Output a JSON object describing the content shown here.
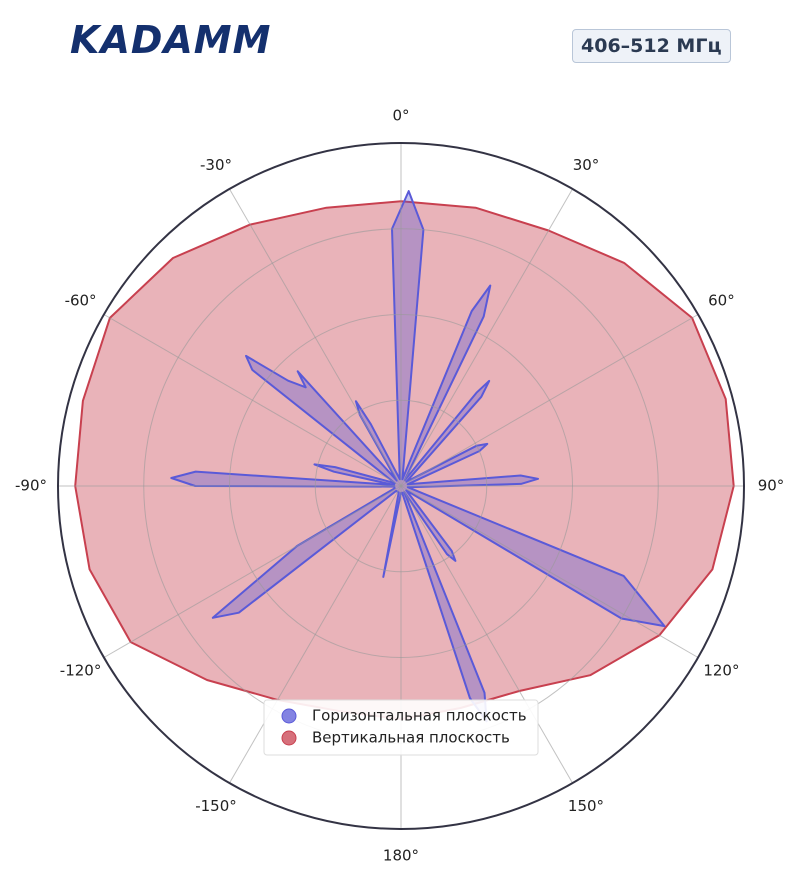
{
  "logo": "KADAMM",
  "badge": "406–512 МГц",
  "chart_data": {
    "type": "polar",
    "direction": "clockwise",
    "zero": "top",
    "rlim": [
      0,
      1
    ],
    "rgrid": [
      0.25,
      0.5,
      0.75
    ],
    "thetaticks": [
      {
        "value": 0,
        "label": "0°"
      },
      {
        "value": 30,
        "label": "30°"
      },
      {
        "value": 60,
        "label": "60°"
      },
      {
        "value": 90,
        "label": "90°"
      },
      {
        "value": 120,
        "label": "120°"
      },
      {
        "value": 150,
        "label": "150°"
      },
      {
        "value": 180,
        "label": "180°"
      },
      {
        "value": -150,
        "label": "-150°"
      },
      {
        "value": -120,
        "label": "-120°"
      },
      {
        "value": -90,
        "label": "-90°"
      },
      {
        "value": -60,
        "label": "-60°"
      },
      {
        "value": -30,
        "label": "-30°"
      }
    ],
    "legend": "bottom",
    "series": [
      {
        "name": "Вертикальная плоскость",
        "color": "#c8404f",
        "theta": [
          -180,
          -165,
          -150,
          -135,
          -120,
          -105,
          -90,
          -75,
          -60,
          -45,
          -30,
          -15,
          0,
          15,
          30,
          45,
          60,
          75,
          90,
          105,
          120,
          135,
          150,
          165
        ],
        "values": [
          0.68,
          0.68,
          0.72,
          0.8,
          0.91,
          0.94,
          0.95,
          0.96,
          0.98,
          0.94,
          0.88,
          0.84,
          0.83,
          0.84,
          0.86,
          0.92,
          0.98,
          0.98,
          0.97,
          0.94,
          0.87,
          0.78,
          0.69,
          0.67
        ]
      },
      {
        "name": "Горизонтальная плоскость",
        "color": "#5a5ad8",
        "theta": [
          -180,
          -169,
          -160,
          -135,
          -128,
          -125,
          -120,
          -110,
          -95,
          -90,
          -88,
          -86,
          -82,
          -78,
          -76,
          -74,
          -65,
          -52,
          -50,
          -47,
          -44,
          -42,
          -38,
          -30,
          -28,
          -26,
          -10,
          -2,
          1.5,
          5,
          12,
          22,
          24,
          26,
          33,
          39,
          40,
          42,
          52,
          62,
          64,
          66,
          76,
          85,
          87,
          89,
          100,
          112,
          118,
          121,
          130,
          142,
          144,
          146,
          152,
          158,
          160,
          162,
          170
        ],
        "values": [
          0.02,
          0.27,
          0.02,
          0.02,
          0.6,
          0.67,
          0.35,
          0.02,
          0.02,
          0.6,
          0.67,
          0.6,
          0.02,
          0.2,
          0.26,
          0.2,
          0.02,
          0.55,
          0.59,
          0.45,
          0.4,
          0.45,
          0.02,
          0.24,
          0.28,
          0.2,
          0.02,
          0.75,
          0.86,
          0.75,
          0.02,
          0.55,
          0.64,
          0.55,
          0.02,
          0.35,
          0.4,
          0.35,
          0.02,
          0.25,
          0.28,
          0.25,
          0.02,
          0.35,
          0.4,
          0.35,
          0.02,
          0.7,
          0.87,
          0.75,
          0.02,
          0.24,
          0.27,
          0.24,
          0.02,
          0.65,
          0.73,
          0.65,
          0.02
        ]
      }
    ]
  }
}
